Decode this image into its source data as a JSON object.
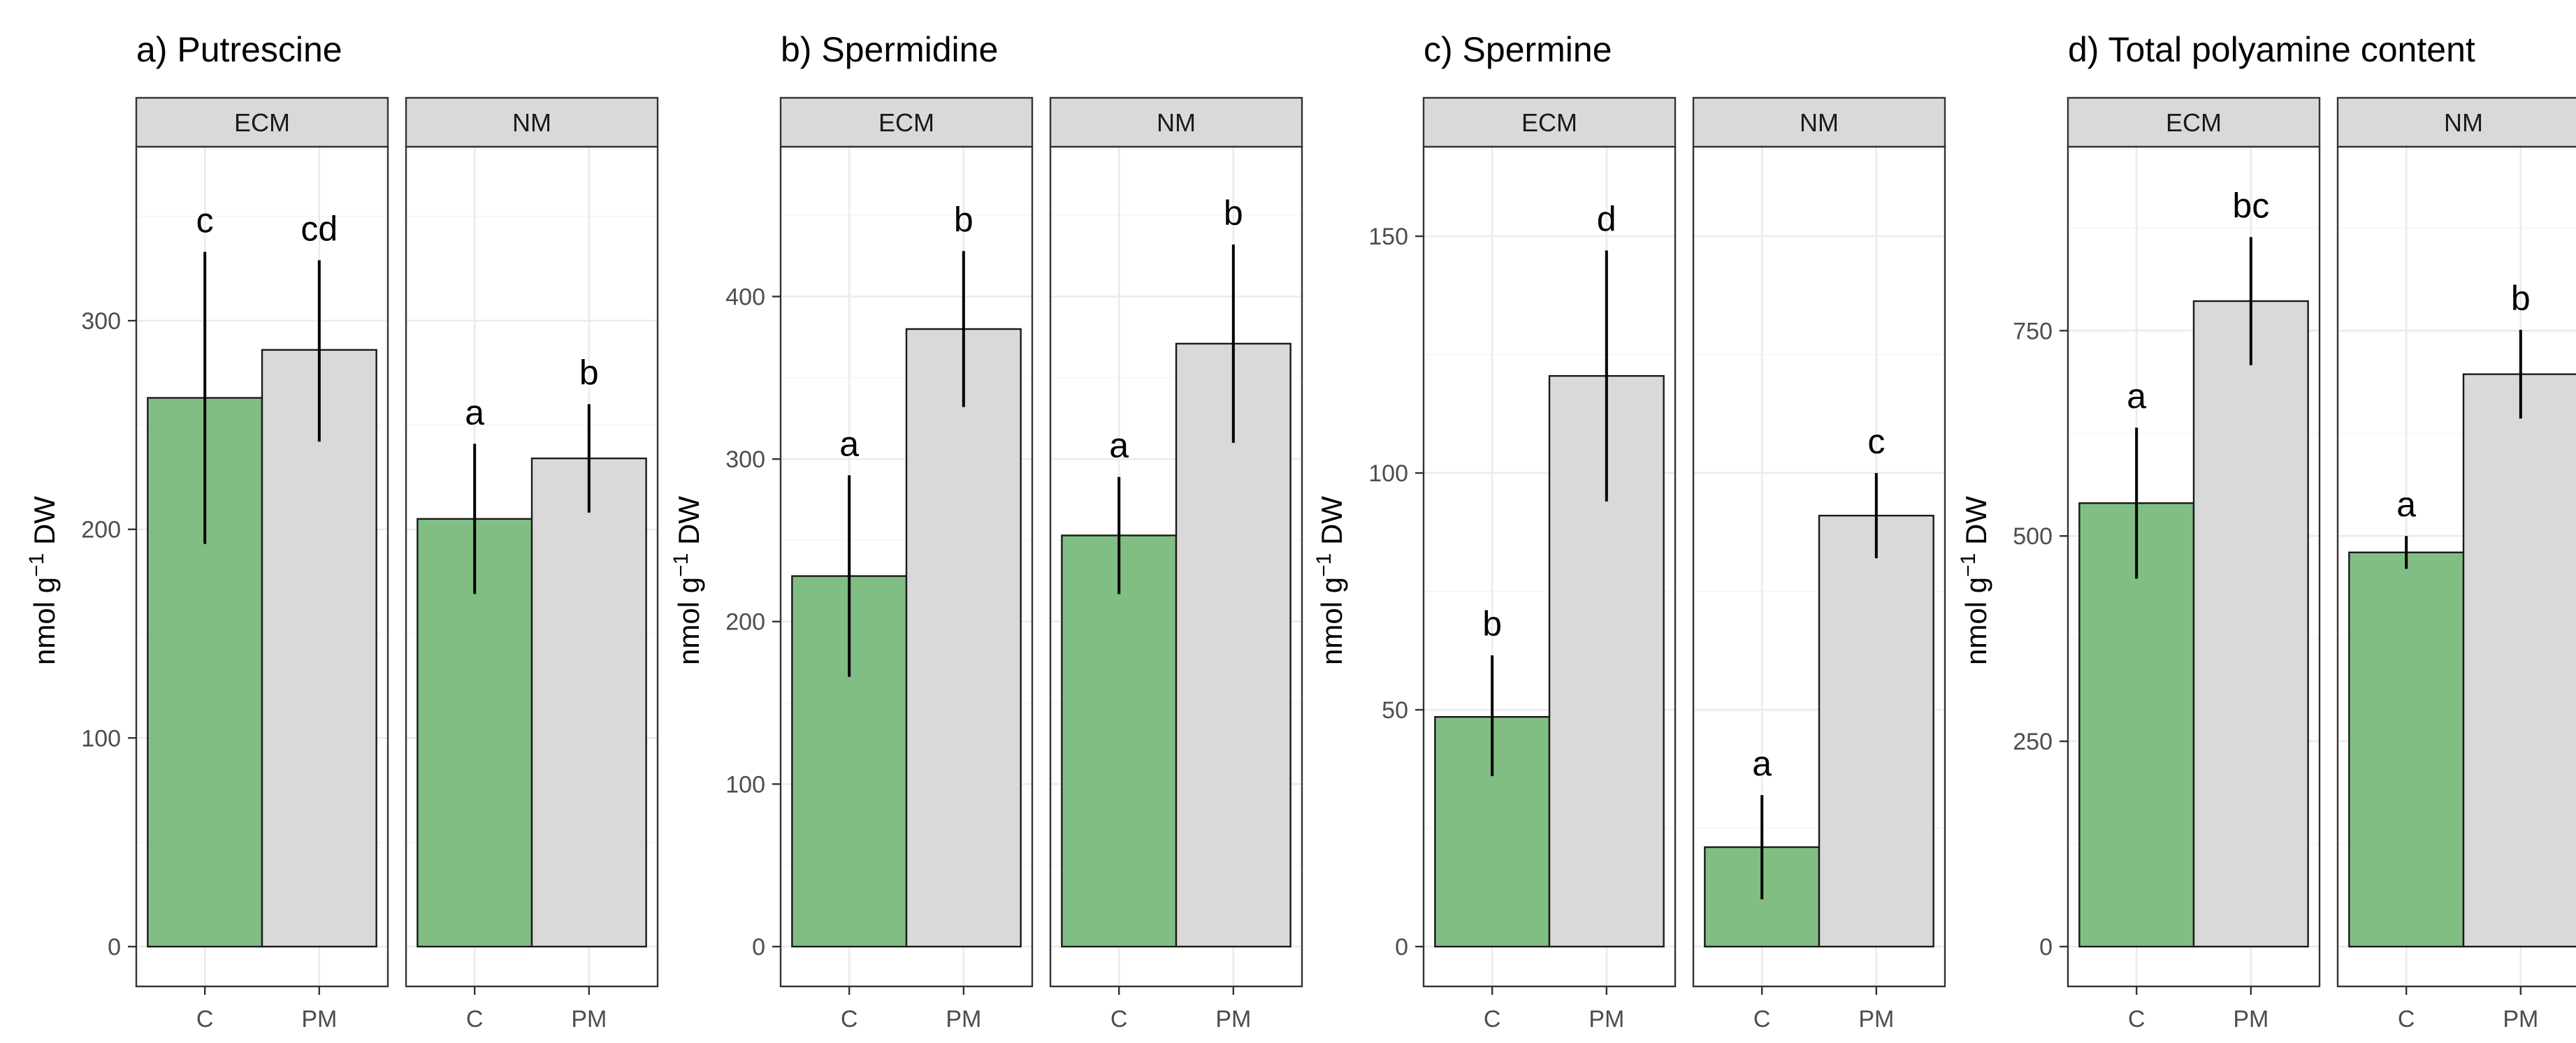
{
  "colors": {
    "C": "#81BE83",
    "PM": "#D9D9D9"
  },
  "chart_data": [
    {
      "type": "bar",
      "title": "a) Putrescine",
      "ylabel_main": "nmol g",
      "ylabel_sup": "−1",
      "ylabel_tail": " DW",
      "ylim": [
        0,
        370
      ],
      "yticks": [
        0,
        100,
        200,
        300
      ],
      "ytick_labels": [
        "0",
        "100",
        "200",
        "300"
      ],
      "facets": [
        "ECM",
        "NM"
      ],
      "categories": [
        "C",
        "PM"
      ],
      "groups": [
        {
          "facet": "ECM",
          "category": "C",
          "value": 263,
          "err_low": 193,
          "err_high": 333,
          "sig": "c"
        },
        {
          "facet": "ECM",
          "category": "PM",
          "value": 286,
          "err_low": 242,
          "err_high": 329,
          "sig": "cd"
        },
        {
          "facet": "NM",
          "category": "C",
          "value": 205,
          "err_low": 169,
          "err_high": 241,
          "sig": "a"
        },
        {
          "facet": "NM",
          "category": "PM",
          "value": 234,
          "err_low": 208,
          "err_high": 260,
          "sig": "b"
        }
      ]
    },
    {
      "type": "bar",
      "title": "b) Spermidine",
      "ylabel_main": "nmol g",
      "ylabel_sup": "−1",
      "ylabel_tail": " DW",
      "ylim": [
        0,
        475
      ],
      "yticks": [
        0,
        100,
        200,
        300,
        400
      ],
      "ytick_labels": [
        "0",
        "100",
        "200",
        "300",
        "400"
      ],
      "facets": [
        "ECM",
        "NM"
      ],
      "categories": [
        "C",
        "PM"
      ],
      "groups": [
        {
          "facet": "ECM",
          "category": "C",
          "value": 228,
          "err_low": 166,
          "err_high": 290,
          "sig": "a"
        },
        {
          "facet": "ECM",
          "category": "PM",
          "value": 380,
          "err_low": 332,
          "err_high": 428,
          "sig": "b"
        },
        {
          "facet": "NM",
          "category": "C",
          "value": 253,
          "err_low": 217,
          "err_high": 289,
          "sig": "a"
        },
        {
          "facet": "NM",
          "category": "PM",
          "value": 371,
          "err_low": 310,
          "err_high": 432,
          "sig": "b"
        }
      ]
    },
    {
      "type": "bar",
      "title": "c) Spermine",
      "ylabel_main": "nmol g",
      "ylabel_sup": "−1",
      "ylabel_tail": " DW",
      "ylim": [
        0,
        163
      ],
      "yticks": [
        0,
        50,
        100,
        150
      ],
      "ytick_labels": [
        "0",
        "50",
        "100",
        "150"
      ],
      "facets": [
        "ECM",
        "NM"
      ],
      "categories": [
        "C",
        "PM"
      ],
      "groups": [
        {
          "facet": "ECM",
          "category": "C",
          "value": 48.5,
          "err_low": 36,
          "err_high": 61.5,
          "sig": "b"
        },
        {
          "facet": "ECM",
          "category": "PM",
          "value": 120.5,
          "err_low": 94,
          "err_high": 147,
          "sig": "d"
        },
        {
          "facet": "NM",
          "category": "C",
          "value": 21,
          "err_low": 10,
          "err_high": 32,
          "sig": "a"
        },
        {
          "facet": "NM",
          "category": "PM",
          "value": 91,
          "err_low": 82,
          "err_high": 100,
          "sig": "c"
        }
      ]
    },
    {
      "type": "bar",
      "title": "d) Total polyamine content",
      "ylabel_main": "nmol g",
      "ylabel_sup": "−1",
      "ylabel_tail": " DW",
      "ylim": [
        0,
        940
      ],
      "yticks": [
        0,
        250,
        500,
        750
      ],
      "ytick_labels": [
        "0",
        "250",
        "500",
        "750"
      ],
      "facets": [
        "ECM",
        "NM"
      ],
      "categories": [
        "C",
        "PM"
      ],
      "groups": [
        {
          "facet": "ECM",
          "category": "C",
          "value": 540,
          "err_low": 448,
          "err_high": 632,
          "sig": "a"
        },
        {
          "facet": "ECM",
          "category": "PM",
          "value": 786,
          "err_low": 708,
          "err_high": 864,
          "sig": "bc"
        },
        {
          "facet": "NM",
          "category": "C",
          "value": 480,
          "err_low": 460,
          "err_high": 500,
          "sig": "a"
        },
        {
          "facet": "NM",
          "category": "PM",
          "value": 697,
          "err_low": 643,
          "err_high": 751,
          "sig": "b"
        }
      ]
    }
  ]
}
